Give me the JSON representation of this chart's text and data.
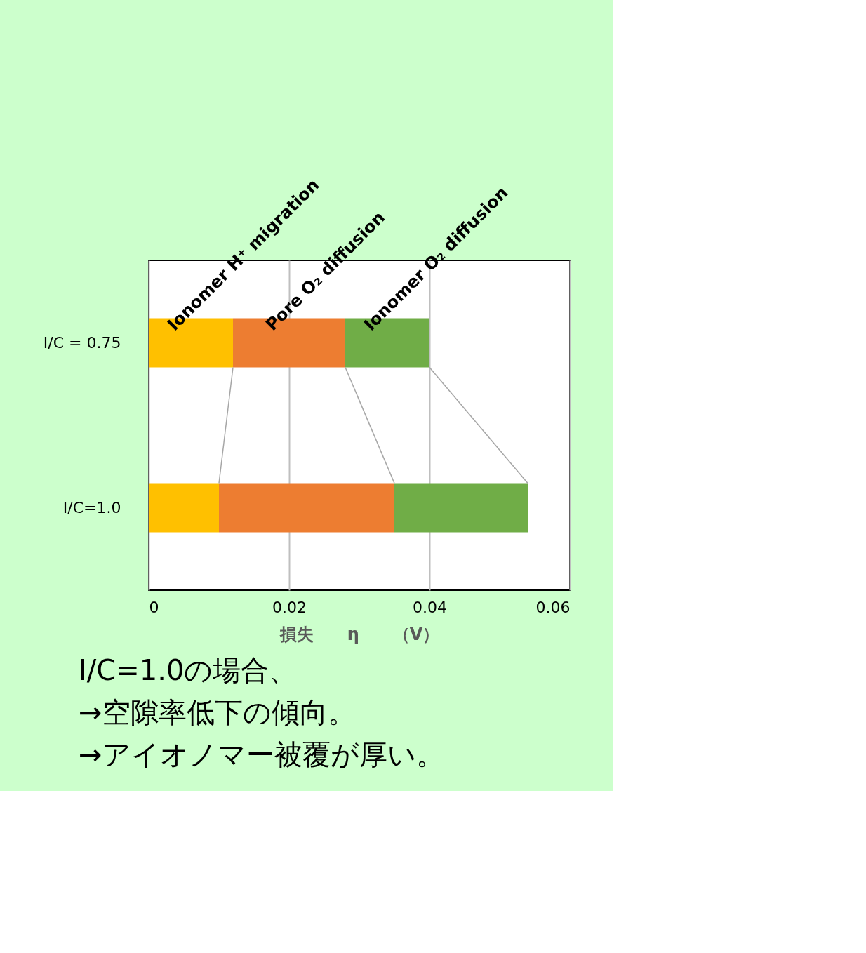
{
  "chart_data": {
    "type": "bar",
    "orientation": "horizontal",
    "stacked": true,
    "categories": [
      "I/C = 0.75",
      "I/C=1.0"
    ],
    "series": [
      {
        "name": "Ionomer H⁺ migration",
        "color": "#ffc000",
        "values": [
          0.012,
          0.01
        ]
      },
      {
        "name": "Pore O₂ diffusion",
        "color": "#ed7d31",
        "values": [
          0.016,
          0.025
        ]
      },
      {
        "name": "Ionomer O₂ diffusion",
        "color": "#70ad47",
        "values": [
          0.012,
          0.019
        ]
      }
    ],
    "xlim": [
      0,
      0.06
    ],
    "xticks": [
      0,
      0.02,
      0.04,
      0.06
    ],
    "xlabel": "損失　　η　　（V）",
    "grid": "x",
    "legend": false,
    "annotations": [
      "I/C=1.0の場合、",
      "→空隙率低下の傾向。",
      "→アイオノマー被覆が厚い。"
    ]
  }
}
